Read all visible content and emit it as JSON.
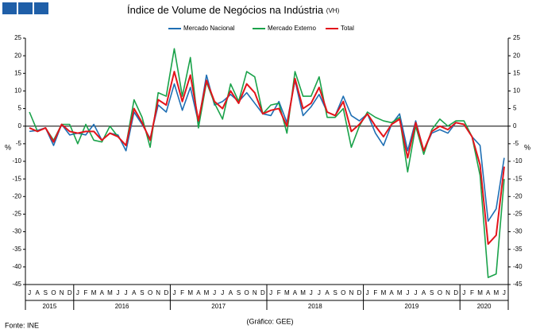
{
  "chart_data": {
    "type": "line",
    "title": "Índice de Volume de Negócios na Indústria",
    "title_suffix": "(VH)",
    "y_label": "%",
    "source": "Fonte: INE",
    "credit": "(Gráfico: GEE)",
    "categories": [
      "J",
      "A",
      "S",
      "O",
      "N",
      "D",
      "J",
      "F",
      "M",
      "A",
      "M",
      "J",
      "J",
      "A",
      "S",
      "O",
      "N",
      "D",
      "J",
      "F",
      "M",
      "A",
      "M",
      "J",
      "J",
      "A",
      "S",
      "O",
      "N",
      "D",
      "J",
      "F",
      "M",
      "A",
      "M",
      "J",
      "J",
      "A",
      "S",
      "O",
      "N",
      "D",
      "J",
      "F",
      "M",
      "A",
      "M",
      "J",
      "J",
      "A",
      "S",
      "O",
      "N",
      "D",
      "J",
      "F",
      "M",
      "A",
      "M",
      "J"
    ],
    "years": [
      "2015",
      "2016",
      "2017",
      "2018",
      "2019",
      "2020"
    ],
    "series": [
      {
        "name": "Mercado Nacional",
        "color": "#1f6fb4",
        "values": [
          -1.5,
          -1.2,
          -0.5,
          -5.5,
          0.5,
          -2.5,
          -2,
          -2.5,
          0.5,
          -4,
          -2,
          -2.5,
          -7,
          4,
          0.5,
          -3.5,
          6,
          4,
          12,
          4.5,
          11,
          1,
          14.5,
          6,
          7,
          9,
          7,
          9.5,
          6.5,
          3.5,
          3,
          7,
          1,
          13,
          3,
          5.5,
          9,
          4,
          3,
          8.5,
          3,
          1.5,
          3.5,
          -2,
          -5.5,
          0.5,
          3.5,
          -7,
          1.5,
          -7,
          -2,
          -1,
          -2,
          1,
          0.5,
          -3,
          -5.5,
          -27,
          -23.5,
          -9
        ]
      },
      {
        "name": "Mercado Externo",
        "color": "#1aa24a",
        "values": [
          4,
          -1.5,
          -0.5,
          -4,
          0.5,
          0.5,
          -5,
          0.5,
          -4,
          -4.5,
          0,
          -3,
          -5.5,
          7.5,
          2.5,
          -6,
          9.5,
          8.5,
          22,
          8.5,
          19.5,
          -0.5,
          12.5,
          6.5,
          2,
          12,
          7,
          15.5,
          14,
          3.5,
          6,
          6.5,
          -2,
          15.5,
          8.5,
          8.5,
          14,
          2.5,
          2.5,
          5,
          -6,
          0,
          4,
          2.5,
          1.5,
          1,
          2.5,
          -13,
          0,
          -8,
          -1,
          2,
          0,
          1.5,
          1.5,
          -3,
          -14,
          -43,
          -42,
          -15
        ]
      },
      {
        "name": "Total",
        "color": "#e3141b",
        "values": [
          -0.5,
          -1.5,
          -0.5,
          -4.5,
          0.5,
          -1.5,
          -2,
          -1.5,
          -1.5,
          -4,
          -2,
          -3,
          -5.5,
          5,
          1,
          -4,
          7.5,
          6,
          15.5,
          7,
          14.5,
          1.5,
          13,
          7,
          5,
          10,
          6.5,
          12,
          9.5,
          3.5,
          4.5,
          5,
          0,
          13.5,
          5,
          6.5,
          11,
          4,
          3,
          7,
          -1.5,
          0.5,
          3.5,
          0,
          -3,
          0.5,
          2,
          -9,
          1,
          -7,
          -1.5,
          0,
          -1,
          1,
          0.5,
          -3,
          -11,
          -33.5,
          -31,
          -11.5
        ]
      }
    ],
    "ylim": [
      -45,
      25
    ],
    "yticks": [
      -45,
      -40,
      -35,
      -30,
      -25,
      -20,
      -15,
      -10,
      -5,
      0,
      5,
      10,
      15,
      20,
      25
    ]
  }
}
